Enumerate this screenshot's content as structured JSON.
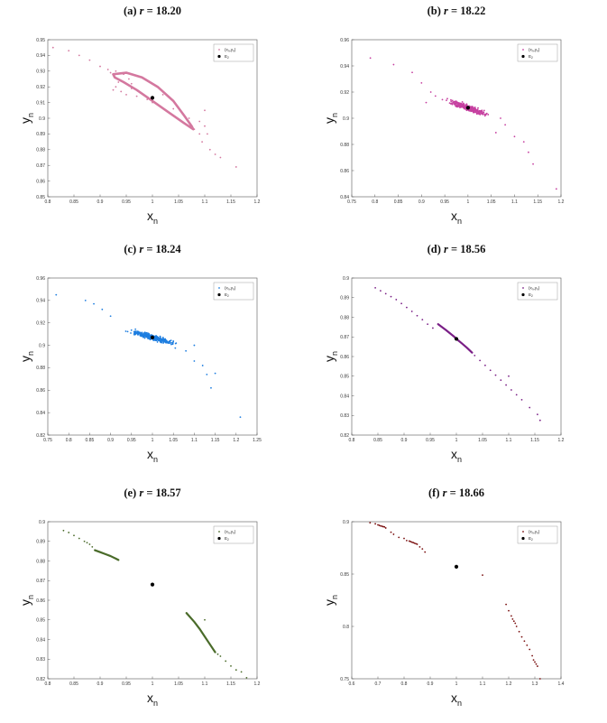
{
  "chart_data": [
    {
      "type": "scatter",
      "title": "(a) r = 18.20",
      "title_prefix": "(a)",
      "title_var": "r",
      "title_value": "18.20",
      "xlabel": "x",
      "xlabel_sub": "n",
      "ylabel": "y",
      "ylabel_sub": "n",
      "xlim": [
        0.8,
        1.2
      ],
      "ylim": [
        0.85,
        0.95
      ],
      "xticks": [
        "0.8",
        "0.85",
        "0.9",
        "0.95",
        "1",
        "1.05",
        "1.1",
        "1.15",
        "1.2"
      ],
      "yticks": [
        "0.85",
        "0.86",
        "0.87",
        "0.88",
        "0.89",
        "0.9",
        "0.91",
        "0.92",
        "0.93",
        "0.94",
        "0.95"
      ],
      "grid": false,
      "legend_placement": "top-right",
      "legend": {
        "series_label": "(x",
        "series_label_sub": "n",
        "series_label_mid": ",y",
        "series_label_sub2": "n",
        "series_label_end": ")",
        "fixed_label": "E",
        "fixed_label_sub": "2"
      },
      "color": "#d4789f",
      "fixed_point": {
        "x": 1.0,
        "y": 0.913
      },
      "series": [
        {
          "kind": "ellipse",
          "x": [
            0.925,
            0.95,
            0.98,
            1.01,
            1.04,
            1.06,
            1.075,
            1.078,
            1.06,
            1.03,
            1.0,
            0.97,
            0.945,
            0.928,
            0.925
          ],
          "y": [
            0.928,
            0.929,
            0.926,
            0.92,
            0.911,
            0.902,
            0.895,
            0.893,
            0.897,
            0.904,
            0.911,
            0.918,
            0.923,
            0.926,
            0.928
          ]
        },
        {
          "kind": "points",
          "x": [
            0.81,
            0.84,
            0.86,
            0.88,
            0.9,
            0.915,
            0.93,
            0.945,
            0.955,
            0.96,
            0.93,
            0.94,
            0.95,
            0.96,
            0.97,
            0.99,
            1.0,
            1.02,
            1.04,
            1.07,
            1.09,
            1.1,
            1.105,
            1.11,
            1.12,
            1.13,
            1.16,
            0.92,
            0.935,
            0.925,
            1.08,
            1.09,
            1.095,
            1.1
          ],
          "y": [
            0.945,
            0.943,
            0.94,
            0.937,
            0.933,
            0.931,
            0.93,
            0.928,
            0.925,
            0.922,
            0.92,
            0.917,
            0.915,
            0.919,
            0.914,
            0.912,
            0.91,
            0.915,
            0.906,
            0.9,
            0.898,
            0.895,
            0.89,
            0.88,
            0.877,
            0.875,
            0.869,
            0.929,
            0.923,
            0.918,
            0.893,
            0.89,
            0.885,
            0.905
          ]
        }
      ]
    },
    {
      "type": "scatter",
      "title": "(b) r = 18.22",
      "title_prefix": "(b)",
      "title_var": "r",
      "title_value": "18.22",
      "xlabel": "x",
      "xlabel_sub": "n",
      "ylabel": "y",
      "ylabel_sub": "n",
      "xlim": [
        0.75,
        1.2
      ],
      "ylim": [
        0.84,
        0.96
      ],
      "xticks": [
        "0.75",
        "0.8",
        "0.85",
        "0.9",
        "0.95",
        "1",
        "1.05",
        "1.1",
        "1.15",
        "1.2"
      ],
      "yticks": [
        "0.84",
        "0.86",
        "0.88",
        "0.9",
        "0.92",
        "0.94",
        "0.96"
      ],
      "grid": false,
      "legend_placement": "top-right",
      "legend": {
        "series_label": "(x",
        "series_label_sub": "n",
        "series_label_mid": ",y",
        "series_label_sub2": "n",
        "series_label_end": ")",
        "fixed_label": "E",
        "fixed_label_sub": "2"
      },
      "color": "#c640a0",
      "fixed_point": {
        "x": 1.0,
        "y": 0.908
      },
      "series": [
        {
          "kind": "cloud",
          "center": [
            1.0,
            0.908
          ],
          "spread_x": 0.06,
          "slope": -0.25,
          "noise": 0.0035,
          "count": 380
        },
        {
          "kind": "points",
          "x": [
            0.79,
            0.84,
            0.88,
            0.9,
            0.92,
            1.08,
            1.1,
            1.12,
            1.13,
            1.14,
            1.19,
            1.06,
            1.07,
            0.91,
            0.93
          ],
          "y": [
            0.946,
            0.941,
            0.935,
            0.927,
            0.92,
            0.895,
            0.886,
            0.882,
            0.874,
            0.865,
            0.846,
            0.889,
            0.9,
            0.912,
            0.917
          ]
        }
      ]
    },
    {
      "type": "scatter",
      "title": "(c) r = 18.24",
      "title_prefix": "(c)",
      "title_var": "r",
      "title_value": "18.24",
      "xlabel": "x",
      "xlabel_sub": "n",
      "ylabel": "y",
      "ylabel_sub": "n",
      "xlim": [
        0.75,
        1.25
      ],
      "ylim": [
        0.82,
        0.96
      ],
      "xticks": [
        "0.75",
        "0.8",
        "0.85",
        "0.9",
        "0.95",
        "1",
        "1.05",
        "1.1",
        "1.15",
        "1.2",
        "1.25"
      ],
      "yticks": [
        "0.82",
        "0.84",
        "0.86",
        "0.88",
        "0.9",
        "0.92",
        "0.94",
        "0.96"
      ],
      "grid": false,
      "legend_placement": "top-right",
      "legend": {
        "series_label": "(x",
        "series_label_sub": "n",
        "series_label_mid": ",y",
        "series_label_sub2": "n",
        "series_label_end": ")",
        "fixed_label": "E",
        "fixed_label_sub": "2"
      },
      "color": "#1e7ee0",
      "fixed_point": {
        "x": 1.0,
        "y": 0.907
      },
      "series": [
        {
          "kind": "cloud",
          "center": [
            1.0,
            0.907
          ],
          "spread_x": 0.08,
          "slope": -0.22,
          "noise": 0.004,
          "count": 360
        },
        {
          "kind": "points",
          "x": [
            0.77,
            0.84,
            0.86,
            0.88,
            0.9,
            1.08,
            1.1,
            1.12,
            1.13,
            1.14,
            1.15,
            1.21,
            1.1
          ],
          "y": [
            0.945,
            0.94,
            0.937,
            0.932,
            0.926,
            0.895,
            0.886,
            0.882,
            0.874,
            0.862,
            0.875,
            0.836,
            0.9
          ]
        }
      ]
    },
    {
      "type": "scatter",
      "title": "(d) r = 18.56",
      "title_prefix": "(d)",
      "title_var": "r",
      "title_value": "18.56",
      "xlabel": "x",
      "xlabel_sub": "n",
      "ylabel": "y",
      "ylabel_sub": "n",
      "xlim": [
        0.8,
        1.2
      ],
      "ylim": [
        0.82,
        0.9
      ],
      "xticks": [
        "0.8",
        "0.85",
        "0.9",
        "0.95",
        "1",
        "1.05",
        "1.1",
        "1.15",
        "1.2"
      ],
      "yticks": [
        "0.82",
        "0.83",
        "0.84",
        "0.85",
        "0.86",
        "0.87",
        "0.88",
        "0.89",
        "0.9"
      ],
      "grid": false,
      "legend_placement": "top-right",
      "legend": {
        "series_label": "(x",
        "series_label_sub": "n",
        "series_label_mid": ",y",
        "series_label_sub2": "n",
        "series_label_end": ")",
        "fixed_label": "E",
        "fixed_label_sub": "2"
      },
      "color": "#7a1f86",
      "fixed_point": {
        "x": 1.0,
        "y": 0.869
      },
      "series": [
        {
          "kind": "curve",
          "x": [
            0.965,
            0.98,
            0.995,
            1.0,
            1.01,
            1.02,
            1.03
          ],
          "y": [
            0.8765,
            0.8735,
            0.8703,
            0.869,
            0.8668,
            0.8645,
            0.862
          ]
        },
        {
          "kind": "points",
          "x": [
            0.845,
            0.855,
            0.865,
            0.875,
            0.885,
            0.895,
            0.905,
            0.915,
            0.925,
            0.935,
            0.945,
            0.955,
            1.035,
            1.045,
            1.055,
            1.065,
            1.075,
            1.085,
            1.095,
            1.105,
            1.115,
            1.125,
            1.14,
            1.155,
            1.16,
            1.1
          ],
          "y": [
            0.895,
            0.8935,
            0.892,
            0.8905,
            0.889,
            0.887,
            0.885,
            0.883,
            0.8808,
            0.8788,
            0.8765,
            0.8745,
            0.8605,
            0.858,
            0.8555,
            0.853,
            0.8505,
            0.848,
            0.8455,
            0.843,
            0.8405,
            0.838,
            0.834,
            0.8305,
            0.8275,
            0.85
          ]
        }
      ]
    },
    {
      "type": "scatter",
      "title": "(e) r = 18.57",
      "title_prefix": "(e)",
      "title_var": "r",
      "title_value": "18.57",
      "xlabel": "x",
      "xlabel_sub": "n",
      "ylabel": "y",
      "ylabel_sub": "n",
      "xlim": [
        0.8,
        1.2
      ],
      "ylim": [
        0.82,
        0.9
      ],
      "xticks": [
        "0.8",
        "0.85",
        "0.9",
        "0.95",
        "1",
        "1.05",
        "1.1",
        "1.15",
        "1.2"
      ],
      "yticks": [
        "0.82",
        "0.83",
        "0.84",
        "0.85",
        "0.86",
        "0.87",
        "0.88",
        "0.89",
        "0.9"
      ],
      "grid": false,
      "legend_placement": "top-right",
      "legend": {
        "series_label": "(x",
        "series_label_sub": "n",
        "series_label_mid": ",y",
        "series_label_sub2": "n",
        "series_label_end": ")",
        "fixed_label": "E",
        "fixed_label_sub": "2"
      },
      "color": "#4a6b2a",
      "fixed_point": {
        "x": 1.0,
        "y": 0.868
      },
      "series": [
        {
          "kind": "curve",
          "x": [
            0.89,
            0.9,
            0.91,
            0.92,
            0.93,
            0.935
          ],
          "y": [
            0.8855,
            0.8845,
            0.8835,
            0.8825,
            0.8812,
            0.8805
          ]
        },
        {
          "kind": "curve",
          "x": [
            1.065,
            1.07,
            1.08,
            1.09,
            1.1,
            1.11,
            1.12
          ],
          "y": [
            0.8535,
            0.852,
            0.849,
            0.8455,
            0.8415,
            0.8375,
            0.8335
          ]
        },
        {
          "kind": "points",
          "x": [
            0.83,
            0.84,
            0.85,
            0.86,
            0.87,
            0.875,
            0.88,
            0.885,
            1.125,
            1.13,
            1.14,
            1.15,
            1.16,
            1.17,
            1.18,
            1.1
          ],
          "y": [
            0.8955,
            0.8945,
            0.893,
            0.8915,
            0.89,
            0.8893,
            0.8885,
            0.8872,
            0.8325,
            0.8315,
            0.829,
            0.8265,
            0.8245,
            0.8235,
            0.8205,
            0.85
          ]
        }
      ]
    },
    {
      "type": "scatter",
      "title": "(f) r = 18.66",
      "title_prefix": "(f)",
      "title_var": "r",
      "title_value": "18.66",
      "xlabel": "x",
      "xlabel_sub": "n",
      "ylabel": "y",
      "ylabel_sub": "n",
      "xlim": [
        0.6,
        1.4
      ],
      "ylim": [
        0.75,
        0.9
      ],
      "xticks": [
        "0.6",
        "0.7",
        "0.8",
        "0.9",
        "1",
        "1.1",
        "1.2",
        "1.3",
        "1.4"
      ],
      "yticks": [
        "0.75",
        "0.8",
        "0.85",
        "0.9"
      ],
      "grid": false,
      "legend_placement": "top-right",
      "legend": {
        "series_label": "(x",
        "series_label_sub": "n",
        "series_label_mid": ",y",
        "series_label_sub2": "n",
        "series_label_end": ")",
        "fixed_label": "E",
        "fixed_label_sub": "2"
      },
      "color": "#7a0f0f",
      "fixed_point": {
        "x": 1.0,
        "y": 0.857
      },
      "series": [
        {
          "kind": "points",
          "x": [
            0.67,
            0.69,
            0.7,
            0.705,
            0.71,
            0.715,
            0.72,
            0.725,
            0.73,
            0.75,
            0.76,
            0.78,
            0.8,
            0.81,
            0.82,
            0.825,
            0.83,
            0.835,
            0.84,
            0.845,
            0.85,
            0.86,
            0.87,
            0.88,
            1.1,
            1.19,
            1.2,
            1.21,
            1.215,
            1.22,
            1.225,
            1.23,
            1.24,
            1.25,
            1.26,
            1.27,
            1.28,
            1.29,
            1.295,
            1.3,
            1.305,
            1.31,
            1.32
          ],
          "y": [
            0.899,
            0.898,
            0.897,
            0.8965,
            0.896,
            0.8957,
            0.8953,
            0.895,
            0.894,
            0.89,
            0.888,
            0.885,
            0.884,
            0.882,
            0.8815,
            0.881,
            0.8805,
            0.88,
            0.8795,
            0.879,
            0.8785,
            0.876,
            0.874,
            0.871,
            0.849,
            0.821,
            0.815,
            0.81,
            0.807,
            0.805,
            0.803,
            0.8,
            0.795,
            0.79,
            0.786,
            0.782,
            0.778,
            0.772,
            0.768,
            0.766,
            0.764,
            0.762,
            0.75
          ]
        }
      ]
    }
  ]
}
